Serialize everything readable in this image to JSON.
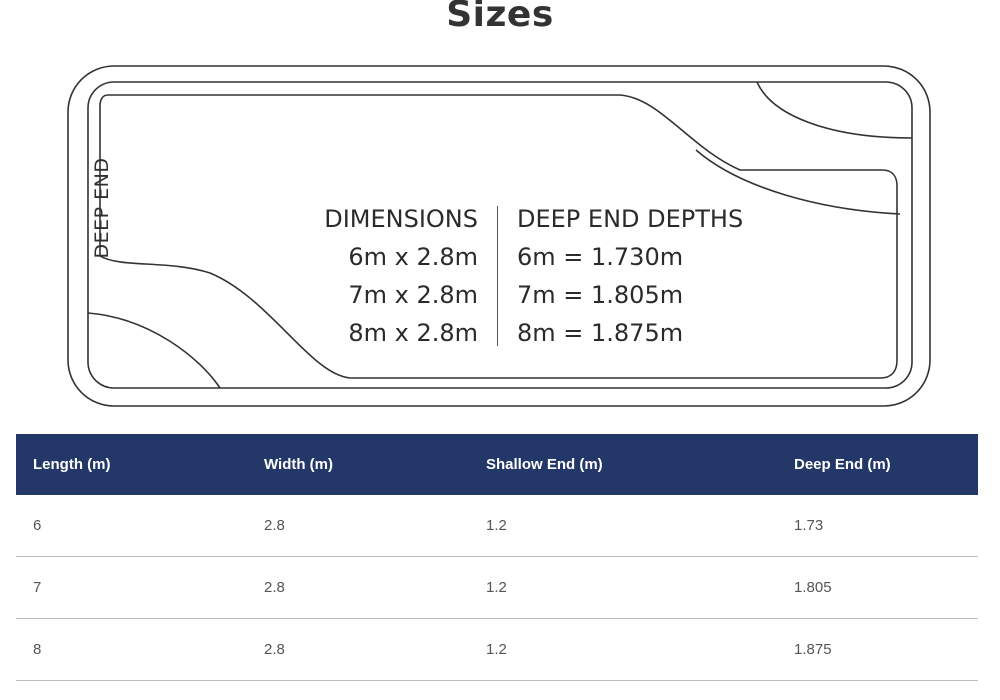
{
  "page": {
    "title": "Sizes"
  },
  "diagram": {
    "deep_end_label": "DEEP END",
    "dimensions_heading": "DIMENSIONS",
    "dimensions": [
      "6m  x 2.8m",
      "7m  x 2.8m",
      "8m x 2.8m"
    ],
    "depths_heading": "DEEP END DEPTHS",
    "depths": [
      "6m = 1.730m",
      "7m = 1.805m",
      "8m = 1.875m"
    ],
    "line_color": "#333333"
  },
  "table": {
    "header_color": "#243769",
    "headers": [
      "Length (m)",
      "Width (m)",
      "Shallow End (m)",
      "Deep End (m)"
    ],
    "rows": [
      [
        "6",
        "2.8",
        "1.2",
        "1.73"
      ],
      [
        "7",
        "2.8",
        "1.2",
        "1.805"
      ],
      [
        "8",
        "2.8",
        "1.2",
        "1.875"
      ]
    ]
  }
}
